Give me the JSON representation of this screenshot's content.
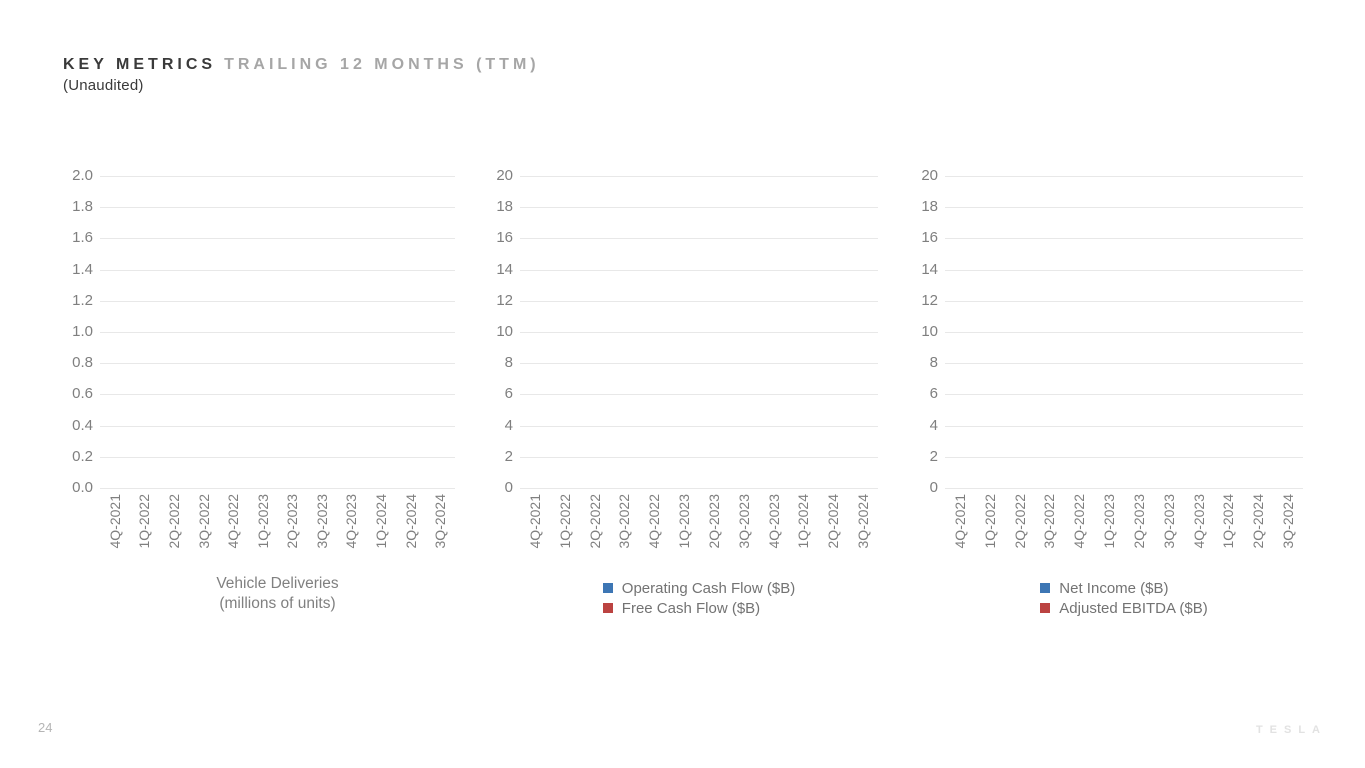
{
  "slide": {
    "title_primary": "KEY METRICS",
    "title_secondary": "TRAILING 12 MONTHS (TTM)",
    "subtitle": "(Unaudited)",
    "page_number": "24",
    "brand_wordmark": "TESLA"
  },
  "colors": {
    "series_blue": "#3d76b4",
    "series_red": "#bb4341",
    "gridline": "#e8e8e8",
    "tick_label": "#7f7f7f",
    "title_dark": "#3a3a3a",
    "title_gray": "#a6a6a6",
    "page_number_gray": "#b5b5b5",
    "brand_gray": "#e2e2e2"
  },
  "chart_data": [
    {
      "type": "line",
      "title": "Vehicle Deliveries (millions of units)",
      "title_lines": [
        "Vehicle Deliveries",
        "(millions of units)"
      ],
      "categories": [
        "4Q-2021",
        "1Q-2022",
        "2Q-2022",
        "3Q-2022",
        "4Q-2022",
        "1Q-2023",
        "2Q-2023",
        "3Q-2023",
        "4Q-2023",
        "1Q-2024",
        "2Q-2024",
        "3Q-2024"
      ],
      "xlabel": "",
      "ylabel": "",
      "ylim": [
        0.0,
        2.0
      ],
      "y_tick_step": 0.2,
      "y_tick_labels": [
        "2.0",
        "1.8",
        "1.6",
        "1.4",
        "1.2",
        "1.0",
        "0.8",
        "0.6",
        "0.4",
        "0.2",
        "0.0"
      ],
      "grid": true,
      "legend_position": "none",
      "series": []
    },
    {
      "type": "line",
      "title": "",
      "title_lines": null,
      "categories": [
        "4Q-2021",
        "1Q-2022",
        "2Q-2022",
        "3Q-2022",
        "4Q-2022",
        "1Q-2023",
        "2Q-2023",
        "3Q-2023",
        "4Q-2023",
        "1Q-2024",
        "2Q-2024",
        "3Q-2024"
      ],
      "xlabel": "",
      "ylabel": "",
      "ylim": [
        0,
        20
      ],
      "y_tick_step": 2,
      "y_tick_labels": [
        "20",
        "18",
        "16",
        "14",
        "12",
        "10",
        "8",
        "6",
        "4",
        "2",
        "0"
      ],
      "grid": true,
      "legend_position": "bottom",
      "series": [
        {
          "name": "Operating Cash Flow ($B)",
          "color": "#3d76b4",
          "values": []
        },
        {
          "name": "Free Cash Flow ($B)",
          "color": "#bb4341",
          "values": []
        }
      ]
    },
    {
      "type": "line",
      "title": "",
      "title_lines": null,
      "categories": [
        "4Q-2021",
        "1Q-2022",
        "2Q-2022",
        "3Q-2022",
        "4Q-2022",
        "1Q-2023",
        "2Q-2023",
        "3Q-2023",
        "4Q-2023",
        "1Q-2024",
        "2Q-2024",
        "3Q-2024"
      ],
      "xlabel": "",
      "ylabel": "",
      "ylim": [
        0,
        20
      ],
      "y_tick_step": 2,
      "y_tick_labels": [
        "20",
        "18",
        "16",
        "14",
        "12",
        "10",
        "8",
        "6",
        "4",
        "2",
        "0"
      ],
      "grid": true,
      "legend_position": "bottom",
      "series": [
        {
          "name": "Net Income ($B)",
          "color": "#3d76b4",
          "values": []
        },
        {
          "name": "Adjusted EBITDA ($B)",
          "color": "#bb4341",
          "values": []
        }
      ]
    }
  ]
}
